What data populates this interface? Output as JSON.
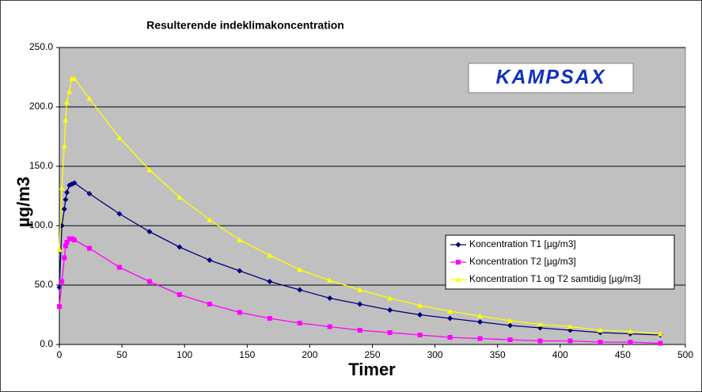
{
  "chart_data": {
    "type": "line",
    "title": "Resulterende indeklimakoncentration",
    "x_label": "Timer",
    "y_label": "µg/m3",
    "logo": "KAMPSAX",
    "x": [
      0,
      2,
      4,
      5,
      6,
      8,
      10,
      12,
      24,
      48,
      72,
      96,
      120,
      144,
      168,
      192,
      216,
      240,
      264,
      288,
      312,
      336,
      360,
      384,
      408,
      432,
      456,
      480
    ],
    "series": [
      {
        "name": "Koncentration T1 [µg/m3]",
        "color": "#000080",
        "marker": "diamond",
        "values": [
          48,
          100,
          114,
          122,
          128,
          134,
          135,
          136,
          127,
          110,
          95,
          82,
          71,
          62,
          53,
          46,
          39,
          34,
          29,
          25,
          22,
          19,
          16,
          14,
          12,
          10,
          9,
          8
        ]
      },
      {
        "name": "Koncentration T2 [µg/m3]",
        "color": "#ff00ff",
        "marker": "square",
        "values": [
          32,
          53,
          73,
          83,
          86,
          89,
          89,
          88,
          81,
          65,
          53,
          42,
          34,
          27,
          22,
          18,
          15,
          12,
          10,
          8,
          6,
          5,
          4,
          3,
          3,
          2,
          2,
          1
        ]
      },
      {
        "name": "Koncentration T1 og T2 samtidig [µg/m3]",
        "color": "#ffff00",
        "marker": "triangle",
        "values": [
          80,
          132,
          167,
          189,
          204,
          213,
          224,
          224,
          207,
          174,
          147,
          124,
          105,
          88,
          75,
          63,
          54,
          46,
          39,
          33,
          28,
          24,
          20,
          17,
          15,
          12,
          11,
          9
        ]
      }
    ],
    "xlim": [
      0,
      500
    ],
    "xticks": [
      0,
      50,
      100,
      150,
      200,
      250,
      300,
      350,
      400,
      450,
      500
    ],
    "ylim": [
      0,
      250
    ],
    "yticks": [
      {
        "value": 0,
        "label": "0.0"
      },
      {
        "value": 50,
        "label": "50.0"
      },
      {
        "value": 100,
        "label": "100.0"
      },
      {
        "value": 150,
        "label": "150.0"
      },
      {
        "value": 200,
        "label": "200.0"
      },
      {
        "value": 250,
        "label": "250.0"
      }
    ],
    "grid": true,
    "plot_background": "#c0c0c0"
  }
}
